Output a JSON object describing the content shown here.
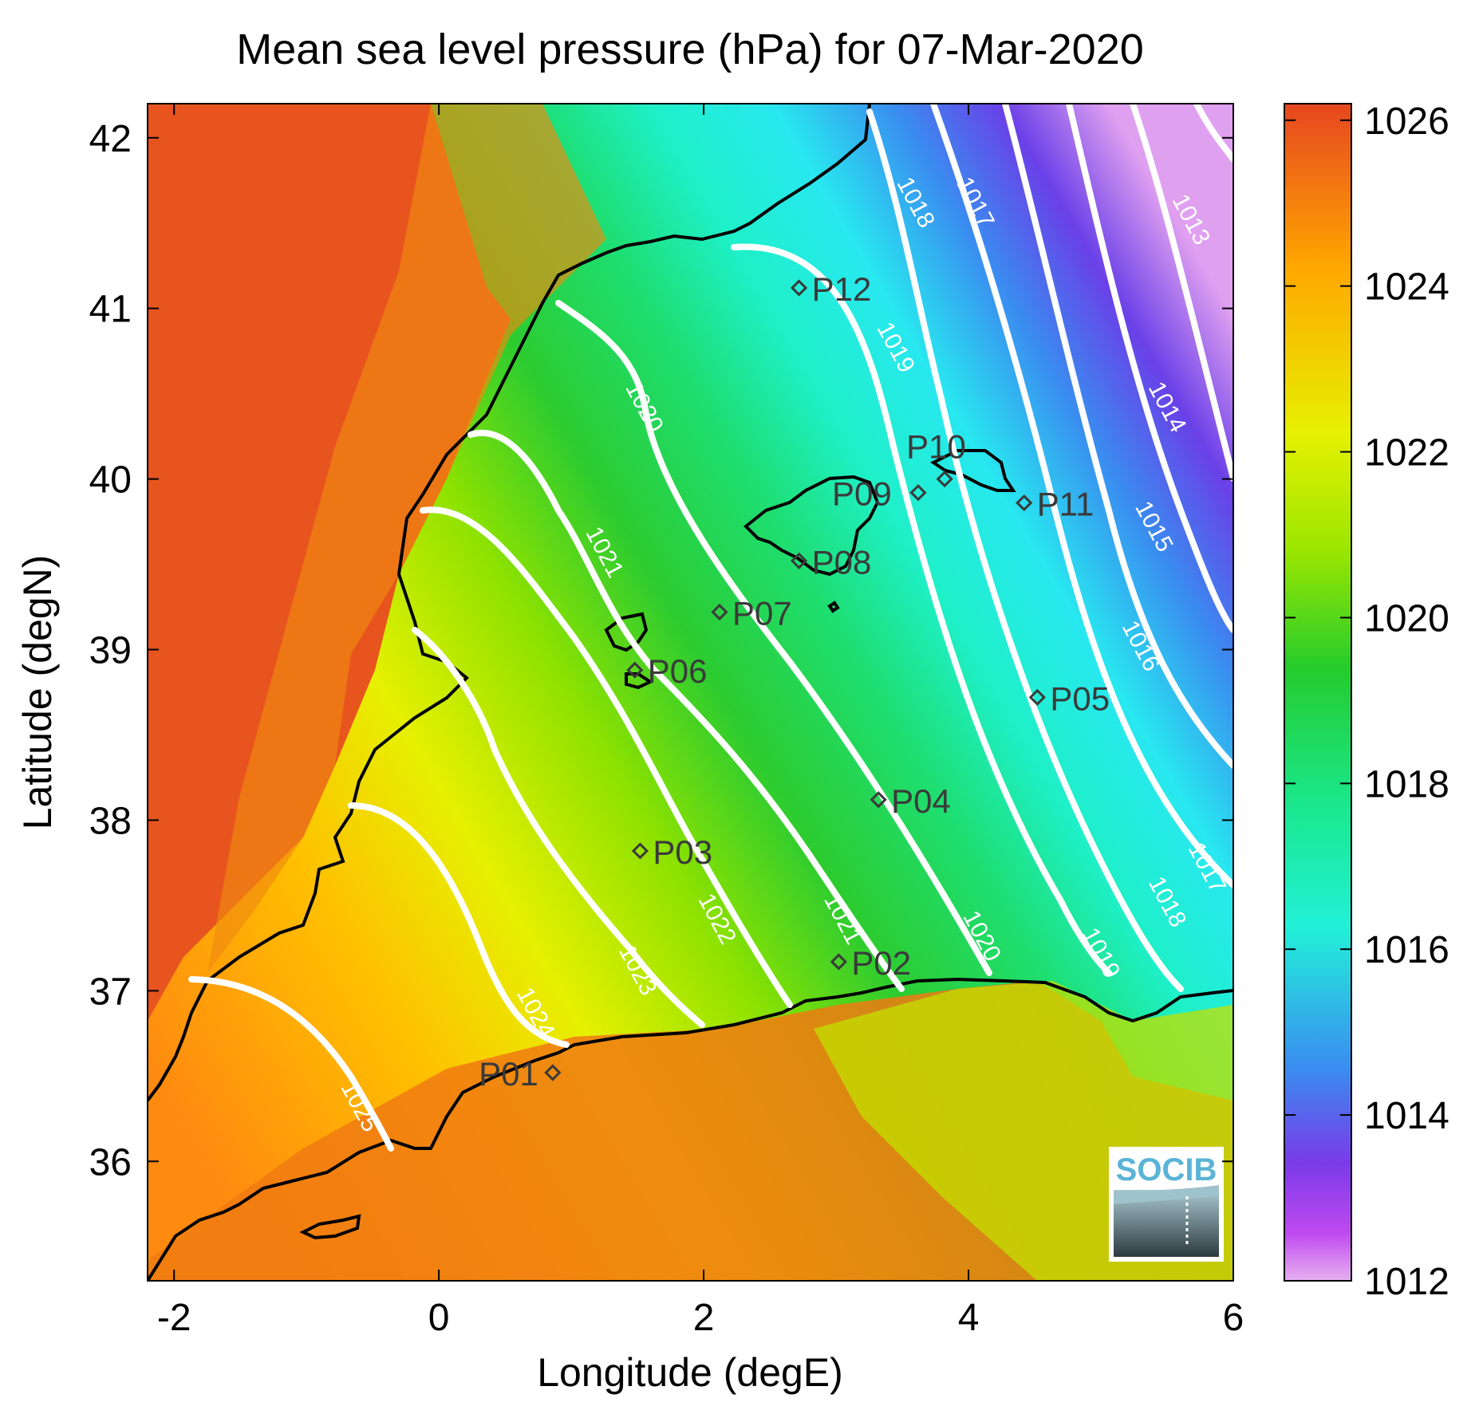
{
  "title": "Mean sea level pressure (hPa) for 07-Mar-2020",
  "xlabel": "Longitude (degE)",
  "ylabel": "Latitude (degN)",
  "x_ticks": [
    "-2",
    "0",
    "2",
    "4",
    "6"
  ],
  "y_ticks": [
    "42",
    "41",
    "40",
    "39",
    "38",
    "37",
    "36"
  ],
  "colorbar": {
    "ticks": [
      "1026",
      "1024",
      "1022",
      "1020",
      "1018",
      "1016",
      "1014",
      "1012"
    ],
    "colors": [
      "#e64620",
      "#ffa800",
      "#e6f000",
      "#24cc2c",
      "#22f0d8",
      "#3a8cf0",
      "#7a3ae8",
      "#e6b0f0"
    ]
  },
  "logo": "SOCIB",
  "chart_data": {
    "type": "heatmap",
    "variable": "Mean sea level pressure",
    "units": "hPa",
    "date": "07-Mar-2020",
    "xlim": [
      -2.2,
      6
    ],
    "ylim": [
      35.3,
      42.2
    ],
    "clim": [
      1012,
      1026.2
    ],
    "contour_levels": [
      1013,
      1014,
      1015,
      1016,
      1017,
      1018,
      1019,
      1020,
      1021,
      1022,
      1023,
      1024,
      1025
    ],
    "contour_labels": [
      {
        "text": "1013",
        "lon": 5.63,
        "lat": 41.5
      },
      {
        "text": "1014",
        "lon": 5.45,
        "lat": 40.4
      },
      {
        "text": "1015",
        "lon": 5.35,
        "lat": 39.7
      },
      {
        "text": "1016",
        "lon": 5.25,
        "lat": 39.0
      },
      {
        "text": "1017",
        "lon": 4.0,
        "lat": 41.6
      },
      {
        "text": "1018",
        "lon": 3.55,
        "lat": 41.6
      },
      {
        "text": "1019",
        "lon": 3.4,
        "lat": 40.75
      },
      {
        "text": "1020",
        "lon": 1.5,
        "lat": 40.4
      },
      {
        "text": "1021",
        "lon": 1.2,
        "lat": 39.55
      },
      {
        "text": "1022",
        "lon": 2.05,
        "lat": 37.4
      },
      {
        "text": "1023",
        "lon": 1.45,
        "lat": 37.1
      },
      {
        "text": "1024",
        "lon": 0.68,
        "lat": 36.85
      },
      {
        "text": "1025",
        "lon": -0.65,
        "lat": 36.3
      },
      {
        "text": "1017",
        "lon": 5.75,
        "lat": 37.7
      },
      {
        "text": "1018",
        "lon": 5.45,
        "lat": 37.5
      },
      {
        "text": "1019",
        "lon": 4.95,
        "lat": 37.2
      },
      {
        "text": "1020",
        "lon": 4.05,
        "lat": 37.3
      },
      {
        "text": "1021",
        "lon": 3.0,
        "lat": 37.4
      }
    ],
    "points": [
      {
        "name": "P01",
        "lon": 0.86,
        "lat": 36.52
      },
      {
        "name": "P02",
        "lon": 3.02,
        "lat": 37.17
      },
      {
        "name": "P03",
        "lon": 1.52,
        "lat": 37.82
      },
      {
        "name": "P04",
        "lon": 3.32,
        "lat": 38.12
      },
      {
        "name": "P05",
        "lon": 4.52,
        "lat": 38.72
      },
      {
        "name": "P06",
        "lon": 1.48,
        "lat": 38.88
      },
      {
        "name": "P07",
        "lon": 2.12,
        "lat": 39.22
      },
      {
        "name": "P08",
        "lon": 2.72,
        "lat": 39.52
      },
      {
        "name": "P09",
        "lon": 3.62,
        "lat": 39.92
      },
      {
        "name": "P10",
        "lon": 3.82,
        "lat": 40.0
      },
      {
        "name": "P11",
        "lon": 4.42,
        "lat": 39.86
      },
      {
        "name": "P12",
        "lon": 2.72,
        "lat": 41.12
      }
    ]
  }
}
